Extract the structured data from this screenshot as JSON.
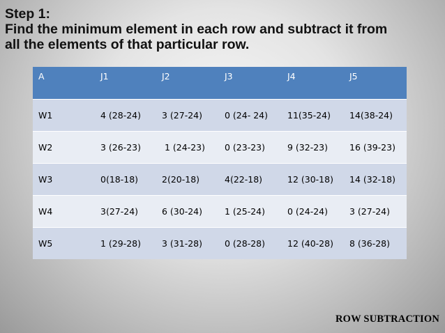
{
  "heading": {
    "line1": "Step 1:",
    "line2": "Find the minimum element in each row and subtract it from",
    "line3": "all the elements of that particular row."
  },
  "table": {
    "headers": [
      "A",
      "J1",
      "J2",
      "J3",
      "J4",
      "J5"
    ],
    "rows": [
      [
        "W1",
        "4 (28-24)",
        "3 (27-24)",
        "0 (24- 24)",
        "11(35-24)",
        "14(38-24)"
      ],
      [
        "W2",
        "3 (26-23)",
        " 1 (24-23)",
        "0 (23-23)",
        "9 (32-23)",
        "16 (39-23)"
      ],
      [
        "W3",
        "0(18-18)",
        "2(20-18)",
        "4(22-18)",
        "12 (30-18)",
        "14 (32-18)"
      ],
      [
        "W4",
        "3(27-24)",
        "6 (30-24)",
        "1 (25-24)",
        "0 (24-24)",
        "3 (27-24)"
      ],
      [
        "W5",
        "1 (29-28)",
        "3 (31-28)",
        "0 (28-28)",
        "12 (40-28)",
        "8 (36-28)"
      ]
    ],
    "header_color": "#4f81bd",
    "row_colors": [
      "#d0d8e8",
      "#e9edf4"
    ]
  },
  "footer": {
    "label": "ROW SUBTRACTION"
  }
}
